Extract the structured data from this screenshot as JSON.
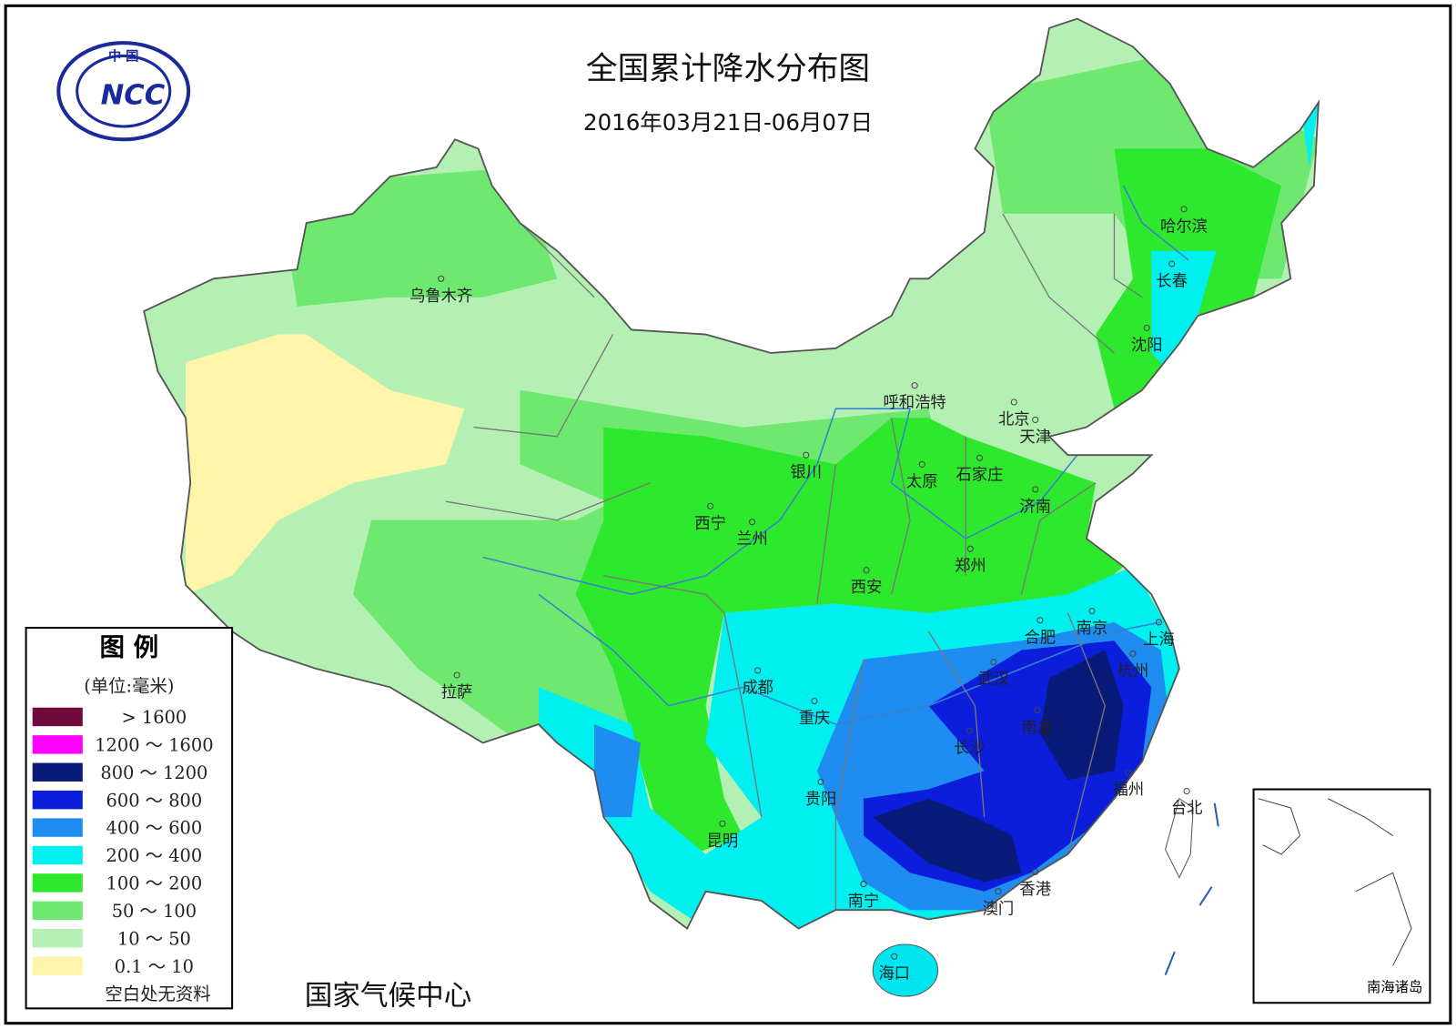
{
  "header": {
    "title": "全国累计降水分布图",
    "subtitle": "2016年03月21日-06月07日"
  },
  "logo": {
    "top": "中 国",
    "name": "NCC"
  },
  "legend": {
    "title": "图 例",
    "unit": "(单位:毫米)",
    "entries": [
      {
        "label": "> 1600",
        "color": "#6e0a3c"
      },
      {
        "label": "1200 ～ 1600",
        "color": "#ff00ff"
      },
      {
        "label": "800 ～ 1200",
        "color": "#0a1a78"
      },
      {
        "label": "600 ～ 800",
        "color": "#0a1edc"
      },
      {
        "label": "400 ～ 600",
        "color": "#1e8cf0"
      },
      {
        "label": "200 ～ 400",
        "color": "#00f0f0"
      },
      {
        "label": "100 ～ 200",
        "color": "#2ee82e"
      },
      {
        "label": "50 ～ 100",
        "color": "#6ee86e"
      },
      {
        "label": "10 ～ 50",
        "color": "#b4f0b4"
      },
      {
        "label": "0.1 ～ 10",
        "color": "#fff5aa"
      }
    ],
    "note": "空白处无资料"
  },
  "cities": [
    "乌鲁木齐",
    "呼和浩特",
    "哈尔滨",
    "长春",
    "沈阳",
    "北京",
    "天津",
    "银川",
    "太原",
    "石家庄",
    "济南",
    "西宁",
    "兰州",
    "郑州",
    "西安",
    "合肥",
    "南京",
    "上海",
    "拉萨",
    "成都",
    "武汉",
    "杭州",
    "重庆",
    "南昌",
    "长沙",
    "福州",
    "贵阳",
    "台北",
    "昆明",
    "南宁",
    "香港",
    "澳门",
    "海口"
  ],
  "inset": {
    "label": "南海诸岛"
  },
  "footer": {
    "source": "国家气候中心"
  }
}
